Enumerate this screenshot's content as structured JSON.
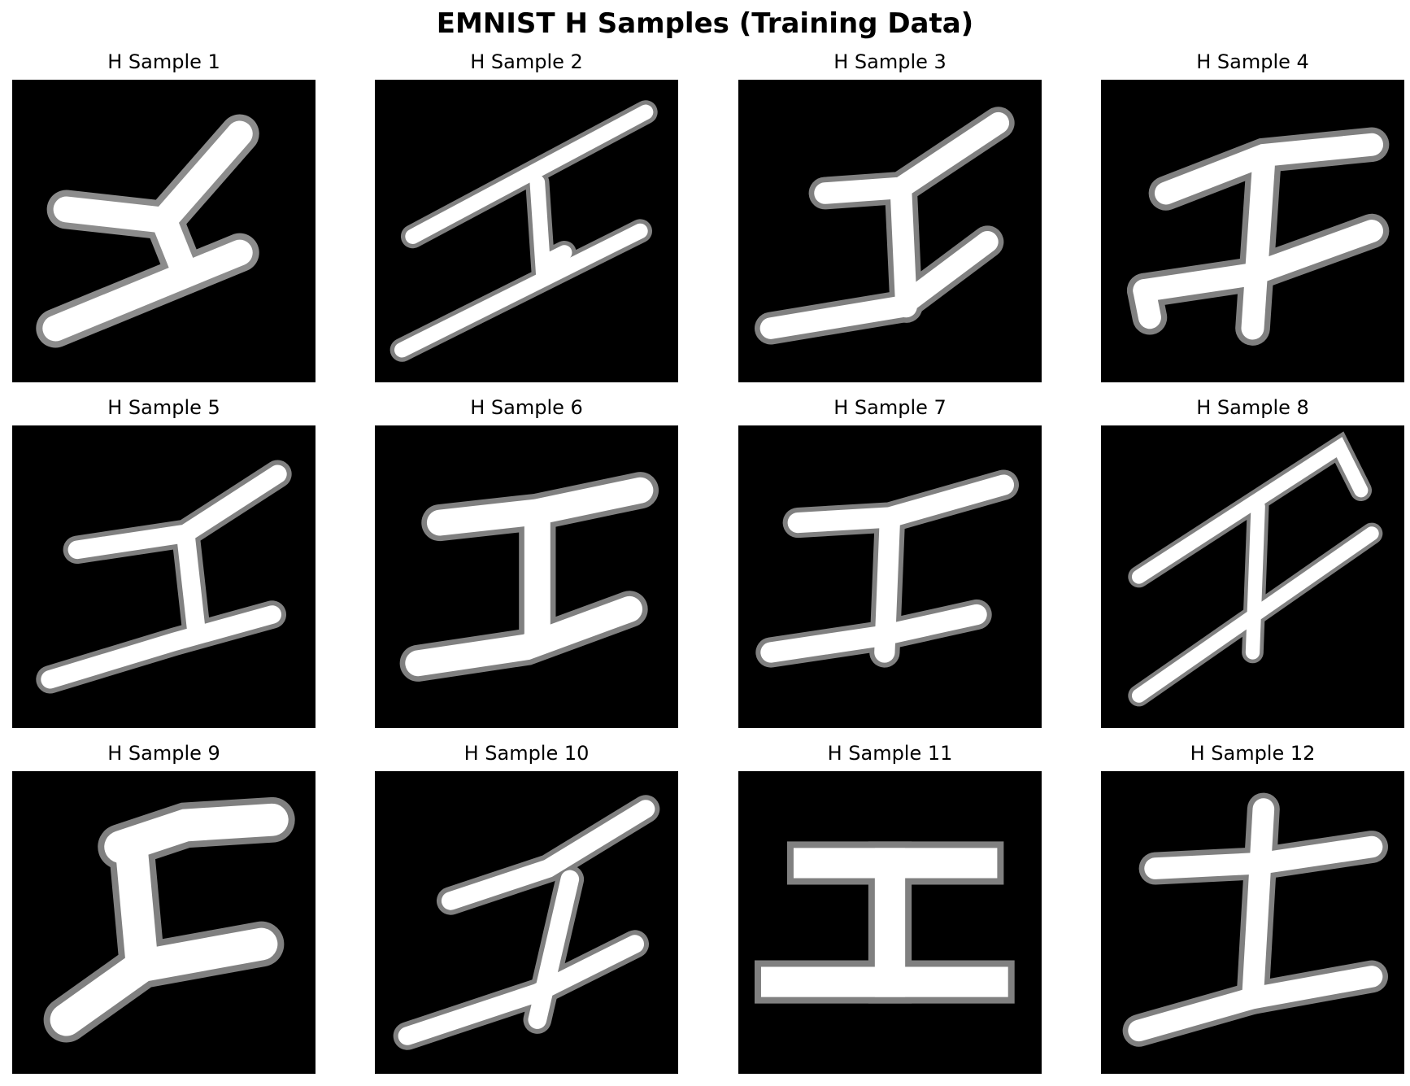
{
  "title": "EMNIST H Samples (Training Data)",
  "colors": {
    "background": "#000000",
    "stroke": "#ffffff",
    "stroke_soft": "#d9d9d9"
  },
  "samples": [
    {
      "label": "H Sample 1"
    },
    {
      "label": "H Sample 2"
    },
    {
      "label": "H Sample 3"
    },
    {
      "label": "H Sample 4"
    },
    {
      "label": "H Sample 5"
    },
    {
      "label": "H Sample 6"
    },
    {
      "label": "H Sample 7"
    },
    {
      "label": "H Sample 8"
    },
    {
      "label": "H Sample 9"
    },
    {
      "label": "H Sample 10"
    },
    {
      "label": "H Sample 11"
    },
    {
      "label": "H Sample 12"
    }
  ]
}
